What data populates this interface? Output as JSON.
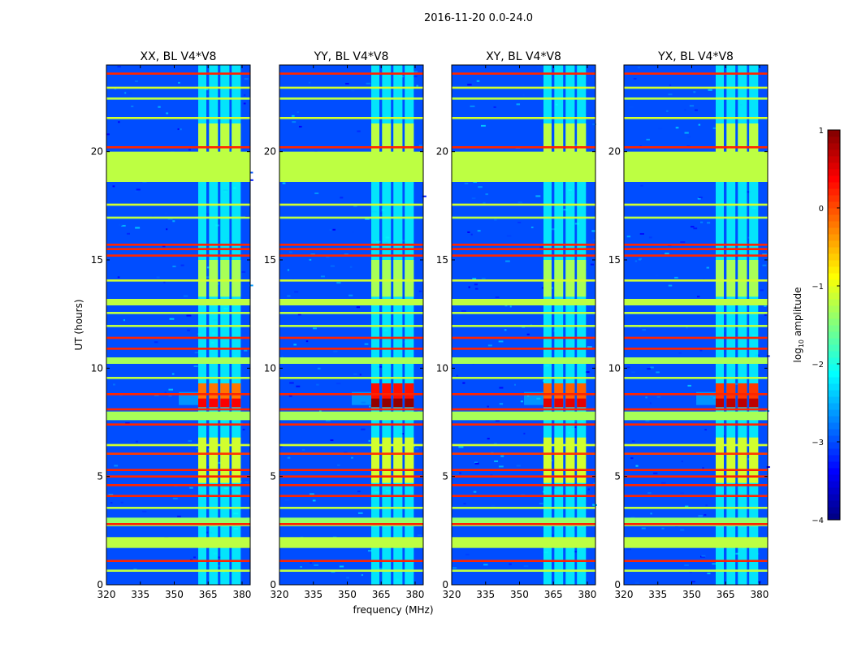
{
  "chart_data": {
    "type": "heatmap",
    "title": "2016-11-20 0.0-24.0",
    "xlabel": "frequency (MHz)",
    "ylabel": "UT (hours)",
    "xlim": [
      320,
      383.6
    ],
    "ylim": [
      0,
      24
    ],
    "xticks": [
      "320",
      "335",
      "350",
      "365",
      "380"
    ],
    "xtick_values": [
      320,
      335,
      350,
      365,
      380
    ],
    "yticks": [
      "0",
      "5",
      "10",
      "15",
      "20"
    ],
    "ytick_values": [
      0,
      5,
      10,
      15,
      20
    ],
    "panels": [
      {
        "title": "XX, BL V4*V8",
        "hot_level": 0.1
      },
      {
        "title": "YY, BL V4*V8",
        "hot_level": 0.6
      },
      {
        "title": "XY, BL V4*V8",
        "hot_level": 0.2
      },
      {
        "title": "YX, BL V4*V8",
        "hot_level": 0.4
      }
    ],
    "background_level": -3.0,
    "rfi_columns_mhz": [
      [
        360.6,
        364.2
      ],
      [
        365.4,
        369.3
      ],
      [
        370.4,
        374.4
      ],
      [
        375.4,
        379.4
      ]
    ],
    "rfi_column_level": -2.1,
    "column_blocks": [
      {
        "ut": [
          19.6,
          21.3
        ],
        "level": -1.2
      },
      {
        "ut": [
          13.3,
          15.0
        ],
        "level": -1.3
      },
      {
        "ut": [
          4.7,
          6.8
        ],
        "level": -1.1
      },
      {
        "ut": [
          8.2,
          9.3
        ],
        "level": 0.0
      },
      {
        "ut": [
          8.2,
          8.6
        ],
        "level": 0.6
      }
    ],
    "bands": [
      {
        "ut": [
          18.6,
          20.0
        ],
        "level": -1.2
      },
      {
        "ut": [
          12.9,
          13.2
        ],
        "level": -1.2
      },
      {
        "ut": [
          10.2,
          10.5
        ],
        "level": -1.3
      },
      {
        "ut": [
          7.6,
          8.0
        ],
        "level": -1.3
      },
      {
        "ut": [
          2.7,
          3.1
        ],
        "level": -1.4
      },
      {
        "ut": [
          1.7,
          2.2
        ],
        "level": -1.2
      },
      {
        "ut": [
          23.55,
          23.65
        ],
        "level": 0.2
      },
      {
        "ut": [
          22.9,
          23.0
        ],
        "level": -1.1
      },
      {
        "ut": [
          22.4,
          22.5
        ],
        "level": -1.2
      },
      {
        "ut": [
          21.5,
          21.6
        ],
        "level": -1.1
      },
      {
        "ut": [
          20.15,
          20.25
        ],
        "level": 0.2
      },
      {
        "ut": [
          17.5,
          17.6
        ],
        "level": -1.1
      },
      {
        "ut": [
          16.9,
          17.0
        ],
        "level": -1.2
      },
      {
        "ut": [
          15.65,
          15.75
        ],
        "level": 0.2
      },
      {
        "ut": [
          15.45,
          15.55
        ],
        "level": 0.2
      },
      {
        "ut": [
          15.15,
          15.25
        ],
        "level": 0.2
      },
      {
        "ut": [
          14.0,
          14.1
        ],
        "level": -1.1
      },
      {
        "ut": [
          12.5,
          12.6
        ],
        "level": -1.2
      },
      {
        "ut": [
          11.9,
          12.0
        ],
        "level": -1.2
      },
      {
        "ut": [
          11.35,
          11.45
        ],
        "level": 0.2
      },
      {
        "ut": [
          10.85,
          10.95
        ],
        "level": 0.2
      },
      {
        "ut": [
          9.5,
          9.6
        ],
        "level": -1.2
      },
      {
        "ut": [
          8.75,
          8.85
        ],
        "level": 0.2
      },
      {
        "ut": [
          8.05,
          8.15
        ],
        "level": 0.2
      },
      {
        "ut": [
          7.35,
          7.45
        ],
        "level": 0.2
      },
      {
        "ut": [
          6.4,
          6.5
        ],
        "level": -1.1
      },
      {
        "ut": [
          6.0,
          6.1
        ],
        "level": 0.1
      },
      {
        "ut": [
          5.25,
          5.35
        ],
        "level": 0.2
      },
      {
        "ut": [
          4.95,
          5.05
        ],
        "level": 0.2
      },
      {
        "ut": [
          4.55,
          4.65
        ],
        "level": 0.2
      },
      {
        "ut": [
          4.05,
          4.15
        ],
        "level": 0.2
      },
      {
        "ut": [
          3.5,
          3.6
        ],
        "level": -1.2
      },
      {
        "ut": [
          2.75,
          2.85
        ],
        "level": 0.2
      },
      {
        "ut": [
          1.05,
          1.15
        ],
        "level": 0.2
      },
      {
        "ut": [
          0.6,
          0.7
        ],
        "level": -1.2
      }
    ],
    "colorbar": {
      "label": "log",
      "label_sub": "10",
      "label_rest": " amplitude",
      "range": [
        -4,
        1
      ],
      "ticks": [
        "1",
        "0",
        "−1",
        "−2",
        "−3",
        "−4"
      ],
      "tick_values": [
        1,
        0,
        -1,
        -2,
        -3,
        -4
      ],
      "colormap": "jet"
    }
  }
}
